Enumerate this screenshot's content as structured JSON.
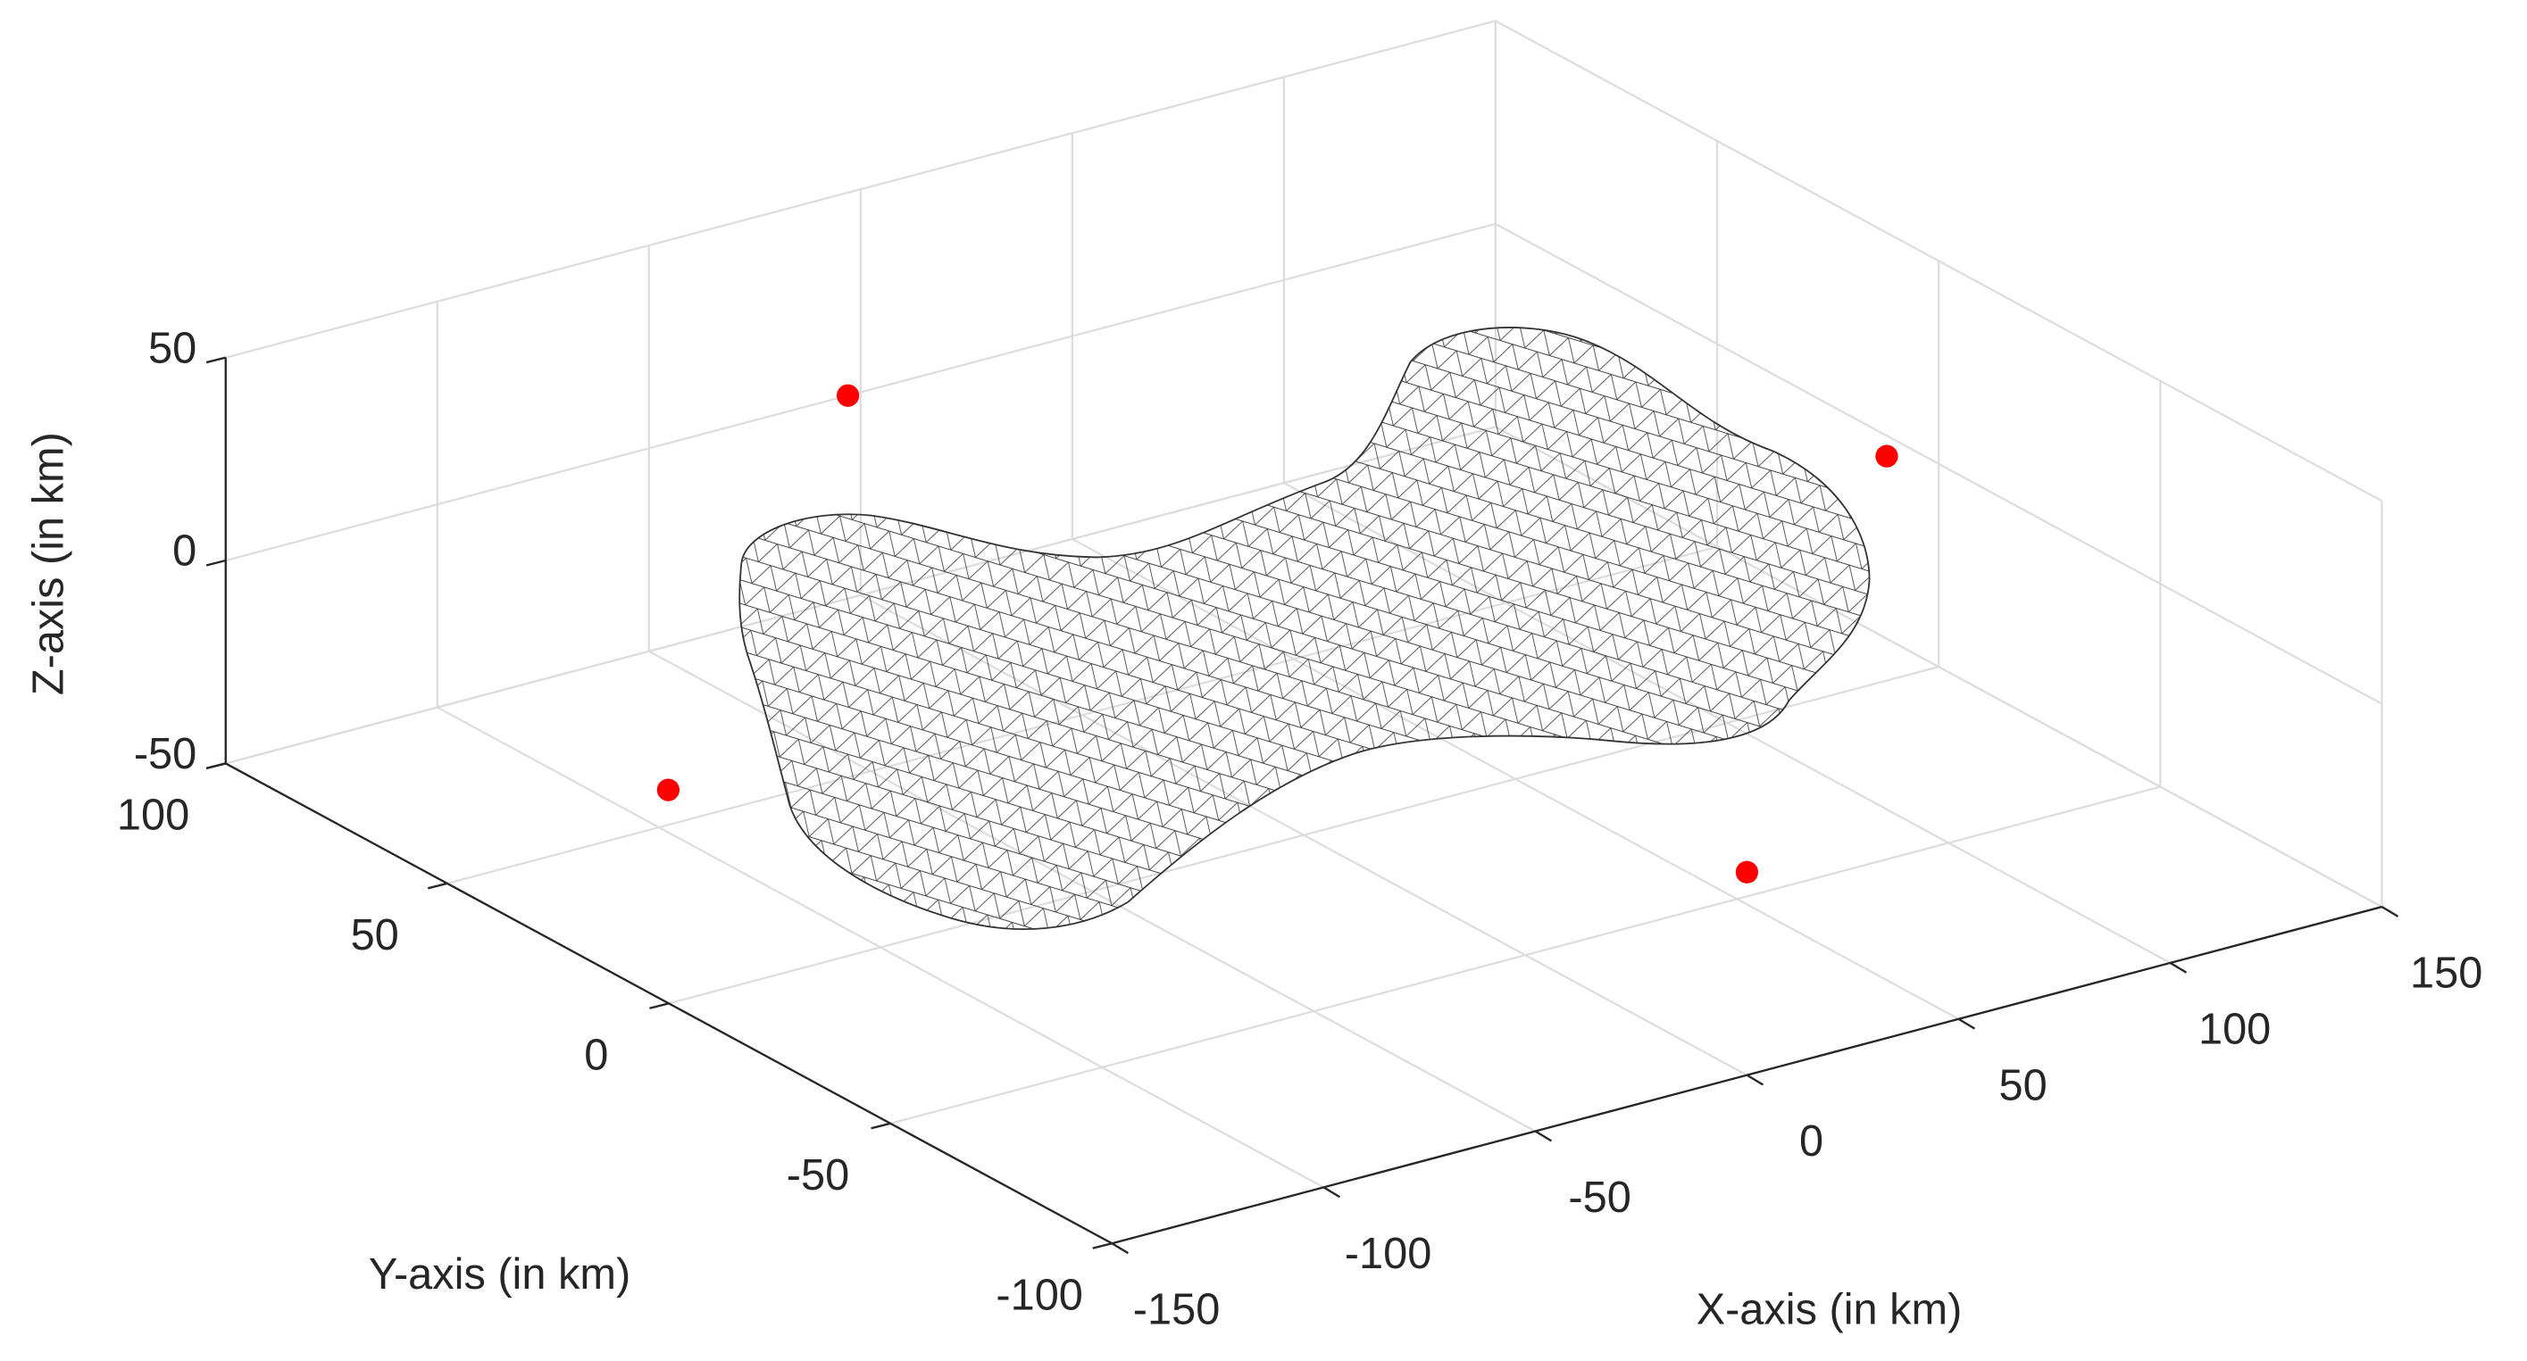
{
  "chart_data": {
    "type": "scatter3d",
    "xlabel": "X-axis (in km)",
    "ylabel": "Y-axis (in km)",
    "zlabel": "Z-axis (in km)",
    "x": [
      0,
      -147,
      144,
      -3
    ],
    "y": [
      -100,
      3,
      6,
      100
    ],
    "z": [
      0,
      0,
      0,
      0
    ],
    "color": "#ff0000",
    "xlim": [
      -150,
      150
    ],
    "ylim": [
      -100,
      100
    ],
    "zlim": [
      -50,
      50
    ],
    "xticks": [
      -150,
      -100,
      -50,
      0,
      50,
      100,
      150
    ],
    "yticks": [
      -100,
      -50,
      0,
      50,
      100
    ],
    "zticks": [
      -50,
      0,
      50
    ],
    "grid": true
  }
}
